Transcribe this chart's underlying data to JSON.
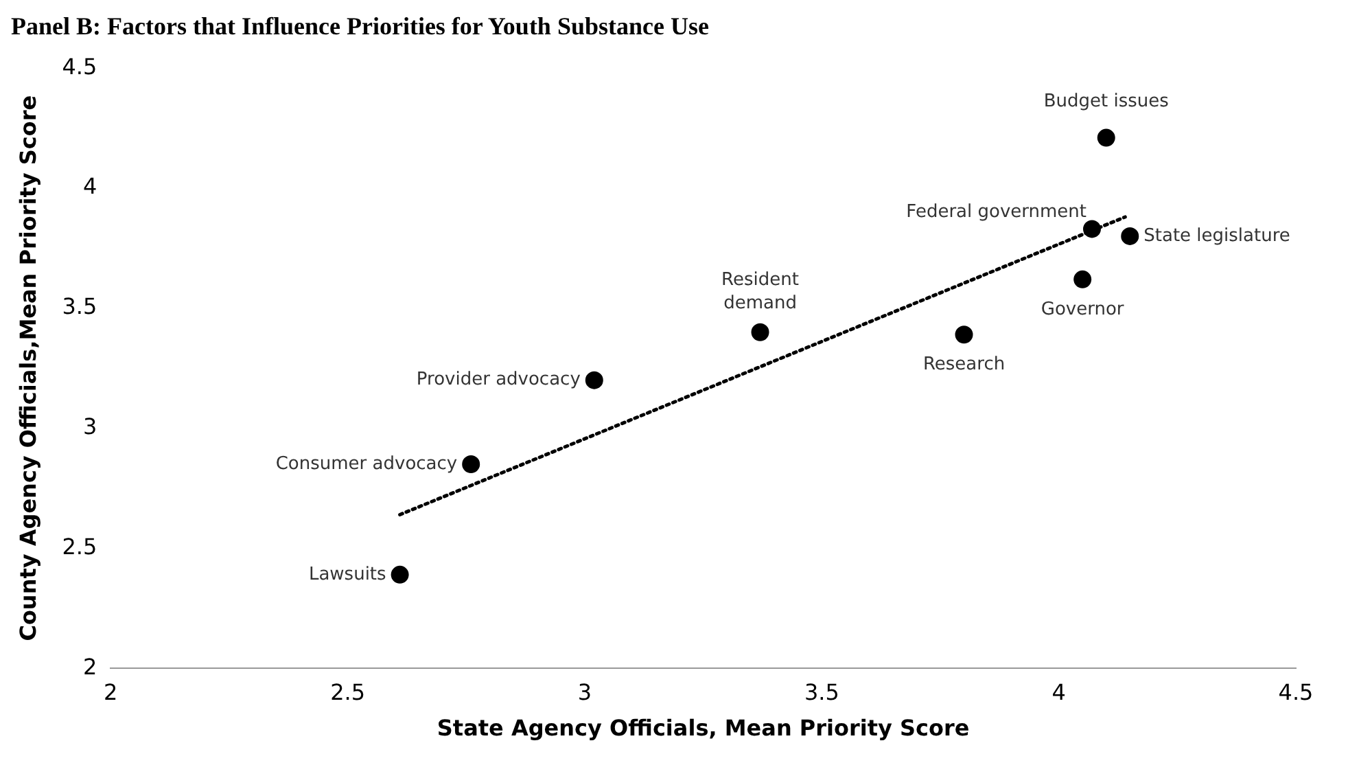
{
  "chart_data": {
    "type": "scatter",
    "title": "Panel B: Factors that Influence Priorities for Youth Substance Use",
    "xlabel": "State Agency Officials, Mean Priority Score",
    "ylabel": "County Agency Officials,Mean Priority Score",
    "xlim": [
      2,
      4.5
    ],
    "xticks": [
      2,
      2.5,
      3,
      3.5,
      4,
      4.5
    ],
    "ylim": [
      2,
      4.5
    ],
    "yticks": [
      2,
      2.5,
      3,
      3.5,
      4,
      4.5
    ],
    "grid": false,
    "legend": false,
    "marker": "circle",
    "series": [
      {
        "type": "scatter",
        "color": "#000000",
        "x": [
          2.61,
          2.76,
          3.02,
          3.37,
          3.8,
          4.05,
          4.07,
          4.15,
          4.1
        ],
        "values": [
          2.39,
          2.85,
          3.2,
          3.4,
          3.39,
          3.62,
          3.83,
          3.8,
          4.21
        ]
      },
      {
        "type": "line",
        "color": "#000000",
        "line_style": "dotted",
        "marker": "none",
        "x": [
          2.61,
          4.14
        ],
        "values": [
          2.64,
          3.88
        ]
      }
    ],
    "annotations": [
      {
        "text": "Lawsuits",
        "x": 2.61,
        "y": 2.39
      },
      {
        "text": "Consumer advocacy",
        "x": 2.76,
        "y": 2.85
      },
      {
        "text": "Provider advocacy",
        "x": 3.02,
        "y": 3.2
      },
      {
        "text": "Resident demand",
        "x": 3.37,
        "y": 3.4
      },
      {
        "text": "Research",
        "x": 3.8,
        "y": 3.39
      },
      {
        "text": "Governor",
        "x": 4.05,
        "y": 3.62
      },
      {
        "text": "Federal government",
        "x": 4.07,
        "y": 3.83
      },
      {
        "text": "State legislature",
        "x": 4.15,
        "y": 3.8
      },
      {
        "text": "Budget issues",
        "x": 4.1,
        "y": 4.21
      }
    ]
  }
}
